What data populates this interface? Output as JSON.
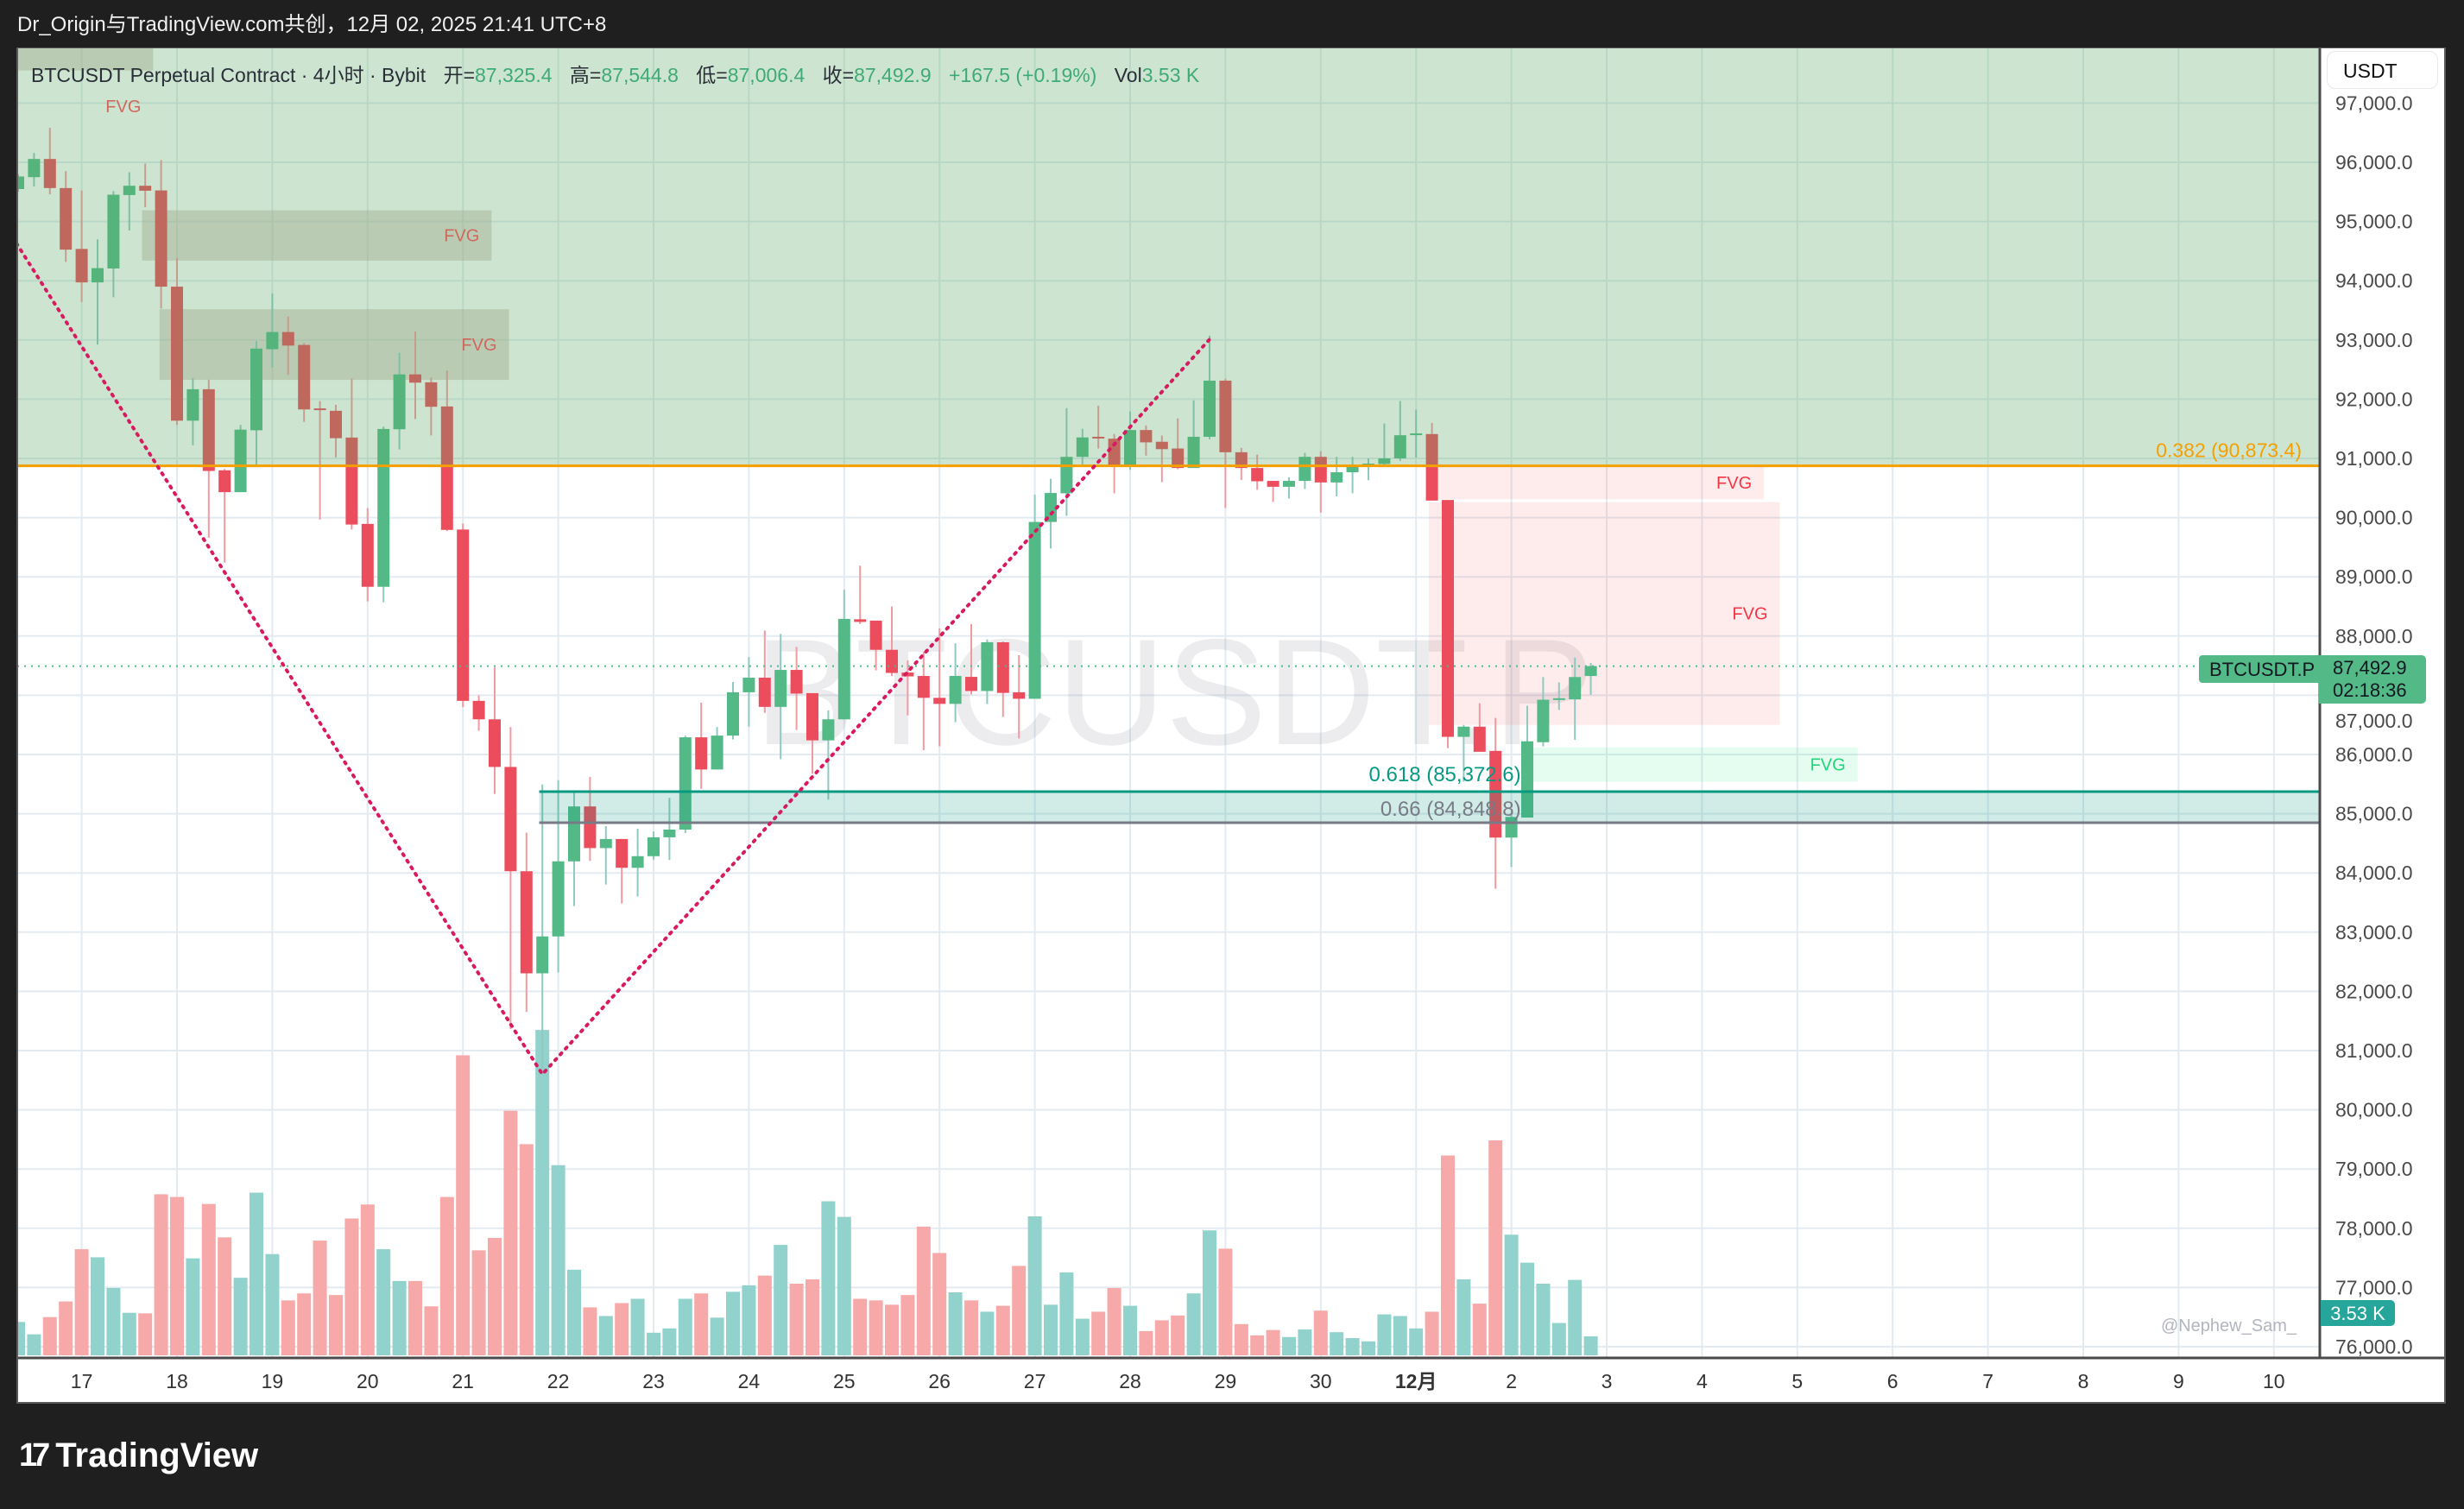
{
  "header": {
    "share_text": "Dr_Origin与TradingView.com共创，12月 02, 2025 21:41 UTC+8"
  },
  "legend": {
    "symbol_desc": "BTCUSDT Perpetual Contract · 4小时 · Bybit",
    "open_label": "开=",
    "open": "87,325.4",
    "high_label": "高=",
    "high": "87,544.8",
    "low_label": "低=",
    "low": "87,006.4",
    "close_label": "收=",
    "close": "87,492.9",
    "change": "+167.5 (+0.19%)",
    "vol_label": "Vol",
    "vol": "3.53 K"
  },
  "price_axis": {
    "currency": "USDT",
    "symbol_tag": "BTCUSDT.P",
    "last_price": "87,492.9",
    "countdown": "02:18:36",
    "volume_tag": "3.53 K"
  },
  "watermark": "BTCUSDT.P",
  "author_tag": "@Nephew_Sam_",
  "logo": {
    "mark": "17",
    "text": "TradingView"
  },
  "colors": {
    "up": "#53b987",
    "down": "#eb4d5c",
    "vol_up": "#92d2cc",
    "vol_down": "#f6a9a8",
    "fib_382": "#f59f00",
    "fib_618": "#089981",
    "fib_66": "#787b86",
    "zigzag": "#d81b60"
  },
  "chart_data": {
    "type": "candlestick",
    "title": "BTCUSDT Perpetual Contract · 4小时 · Bybit",
    "ylabel": "USDT",
    "ylim": [
      76000,
      97000
    ],
    "grid": true,
    "yticks": [
      {
        "value": 97000,
        "label": "97,000.0"
      },
      {
        "value": 96000,
        "label": "96,000.0"
      },
      {
        "value": 95000,
        "label": "95,000.0"
      },
      {
        "value": 94000,
        "label": "94,000.0"
      },
      {
        "value": 93000,
        "label": "93,000.0"
      },
      {
        "value": 92000,
        "label": "92,000.0"
      },
      {
        "value": 91000,
        "label": "91,000.0"
      },
      {
        "value": 90000,
        "label": "90,000.0"
      },
      {
        "value": 89000,
        "label": "89,000.0"
      },
      {
        "value": 88000,
        "label": "88,000.0"
      },
      {
        "value": 87000,
        "label": "87,000.0"
      },
      {
        "value": 86000,
        "label": "86,000.0"
      },
      {
        "value": 85000,
        "label": "85,000.0"
      },
      {
        "value": 84000,
        "label": "84,000.0"
      },
      {
        "value": 83000,
        "label": "83,000.0"
      },
      {
        "value": 82000,
        "label": "82,000.0"
      },
      {
        "value": 81000,
        "label": "81,000.0"
      },
      {
        "value": 80000,
        "label": "80,000.0"
      },
      {
        "value": 79000,
        "label": "79,000.0"
      },
      {
        "value": 78000,
        "label": "78,000.0"
      },
      {
        "value": 77000,
        "label": "77,000.0"
      },
      {
        "value": 76000,
        "label": "76,000.0"
      }
    ],
    "xticks": [
      {
        "bar": 4,
        "label": "17"
      },
      {
        "bar": 10,
        "label": "18"
      },
      {
        "bar": 16,
        "label": "19"
      },
      {
        "bar": 22,
        "label": "20"
      },
      {
        "bar": 28,
        "label": "21"
      },
      {
        "bar": 34,
        "label": "22"
      },
      {
        "bar": 40,
        "label": "23"
      },
      {
        "bar": 46,
        "label": "24"
      },
      {
        "bar": 52,
        "label": "25"
      },
      {
        "bar": 58,
        "label": "26"
      },
      {
        "bar": 64,
        "label": "27"
      },
      {
        "bar": 70,
        "label": "28"
      },
      {
        "bar": 76,
        "label": "29"
      },
      {
        "bar": 82,
        "label": "30"
      },
      {
        "bar": 88,
        "label": "12月",
        "bold": true
      },
      {
        "bar": 94,
        "label": "2"
      },
      {
        "bar": 100,
        "label": "3"
      },
      {
        "bar": 106,
        "label": "4"
      },
      {
        "bar": 112,
        "label": "5"
      },
      {
        "bar": 118,
        "label": "6"
      },
      {
        "bar": 124,
        "label": "7"
      },
      {
        "bar": 130,
        "label": "8"
      },
      {
        "bar": 136,
        "label": "9"
      },
      {
        "bar": 142,
        "label": "10"
      }
    ],
    "candle_fields": [
      "open",
      "high",
      "low",
      "close",
      "volume_k"
    ],
    "candles": [
      [
        95548,
        95800,
        95500,
        95760,
        6.2
      ],
      [
        95749,
        96157,
        95592,
        96056,
        3.9
      ],
      [
        96056,
        96581,
        95458,
        95565,
        7.1
      ],
      [
        95565,
        95850,
        94319,
        94525,
        10.0
      ],
      [
        94537,
        95525,
        93643,
        93972,
        19.7
      ],
      [
        93972,
        94699,
        92922,
        94213,
        18.2
      ],
      [
        94207,
        95514,
        93721,
        95453,
        12.5
      ],
      [
        95447,
        95833,
        94849,
        95604,
        7.9
      ],
      [
        95604,
        95978,
        95241,
        95520,
        7.8
      ],
      [
        95525,
        96039,
        93531,
        93900,
        29.9
      ],
      [
        93900,
        94386,
        91564,
        91637,
        29.4
      ],
      [
        91637,
        92358,
        91223,
        92168,
        18.0
      ],
      [
        92168,
        92330,
        89659,
        90788,
        28.1
      ],
      [
        90799,
        90821,
        89240,
        90430,
        21.9
      ],
      [
        90430,
        91564,
        90430,
        91486,
        14.4
      ],
      [
        91475,
        92983,
        90888,
        92855,
        30.2
      ],
      [
        92844,
        93788,
        92536,
        93134,
        18.8
      ],
      [
        93134,
        93397,
        92408,
        92905,
        10.2
      ],
      [
        92916,
        92950,
        91615,
        91827,
        11.5
      ],
      [
        91844,
        91967,
        89966,
        91827,
        21.3
      ],
      [
        91804,
        91905,
        91017,
        91341,
        11.2
      ],
      [
        91352,
        92346,
        89799,
        89883,
        25.4
      ],
      [
        89894,
        90162,
        88586,
        88832,
        28.0
      ],
      [
        88832,
        91536,
        88570,
        91497,
        19.7
      ],
      [
        91492,
        92782,
        91151,
        92419,
        13.8
      ],
      [
        92419,
        93145,
        91665,
        92279,
        13.8
      ],
      [
        92285,
        92369,
        91386,
        91872,
        9.1
      ],
      [
        91877,
        92486,
        89771,
        89793,
        29.4
      ],
      [
        89799,
        89900,
        86800,
        86906,
        55.7
      ],
      [
        86906,
        87000,
        86400,
        86594,
        19.5
      ],
      [
        86594,
        87471,
        85334,
        85790,
        21.8
      ],
      [
        85790,
        86463,
        81363,
        84029,
        45.4
      ],
      [
        84029,
        84681,
        81653,
        82305,
        39.2
      ],
      [
        82305,
        85493,
        80600,
        82928,
        60.4
      ],
      [
        82928,
        85566,
        82319,
        84196,
        35.3
      ],
      [
        84196,
        85392,
        83442,
        85123,
        15.9
      ],
      [
        85123,
        85623,
        84203,
        84420,
        8.9
      ],
      [
        84420,
        84790,
        83805,
        84573,
        7.3
      ],
      [
        84573,
        84573,
        83486,
        84087,
        9.7
      ],
      [
        84087,
        84747,
        83602,
        84283,
        10.5
      ],
      [
        84283,
        84700,
        84225,
        84602,
        4.2
      ],
      [
        84602,
        85268,
        84218,
        84732,
        5.0
      ],
      [
        84732,
        86319,
        84674,
        86290,
        10.5
      ],
      [
        86290,
        86877,
        85420,
        85747,
        11.5
      ],
      [
        85747,
        86464,
        85747,
        86319,
        7.0
      ],
      [
        86319,
        87225,
        86254,
        87051,
        11.8
      ],
      [
        87051,
        87645,
        86471,
        87297,
        13.0
      ],
      [
        87297,
        88094,
        86703,
        86804,
        14.8
      ],
      [
        86804,
        88036,
        85921,
        87428,
        20.5
      ],
      [
        87428,
        87819,
        86413,
        87029,
        13.3
      ],
      [
        87036,
        87036,
        85674,
        86239,
        14.1
      ],
      [
        86239,
        86746,
        85239,
        86594,
        28.6
      ],
      [
        86594,
        88783,
        86594,
        88290,
        25.7
      ],
      [
        88283,
        89188,
        88203,
        88239,
        10.5
      ],
      [
        88261,
        88261,
        87420,
        87768,
        10.2
      ],
      [
        87768,
        88500,
        87326,
        87377,
        9.4
      ],
      [
        87384,
        87587,
        86660,
        87319,
        11.2
      ],
      [
        87326,
        87732,
        86073,
        86957,
        23.9
      ],
      [
        86957,
        88130,
        86138,
        86855,
        19.0
      ],
      [
        86855,
        87877,
        86544,
        87326,
        11.7
      ],
      [
        87311,
        88202,
        87014,
        87072,
        10.2
      ],
      [
        87072,
        87942,
        86853,
        87895,
        8.1
      ],
      [
        87895,
        87910,
        86634,
        87040,
        9.2
      ],
      [
        87051,
        87676,
        86269,
        86941,
        16.6
      ],
      [
        86941,
        90390,
        86941,
        89927,
        25.8
      ],
      [
        89927,
        90656,
        89479,
        90416,
        9.4
      ],
      [
        90411,
        91849,
        90031,
        91026,
        15.4
      ],
      [
        91026,
        91500,
        90854,
        91354,
        6.8
      ],
      [
        91365,
        91891,
        91167,
        91349,
        8.1
      ],
      [
        91333,
        91411,
        90411,
        90880,
        12.5
      ],
      [
        90880,
        91792,
        90807,
        91479,
        9.2
      ],
      [
        91479,
        91557,
        91047,
        91271,
        4.5
      ],
      [
        91281,
        91386,
        90599,
        91156,
        6.5
      ],
      [
        91167,
        91677,
        90817,
        90838,
        7.4
      ],
      [
        90838,
        91980,
        90838,
        91365,
        11.5
      ],
      [
        91365,
        93073,
        91323,
        92313,
        23.2
      ],
      [
        92313,
        92344,
        90161,
        91104,
        19.8
      ],
      [
        91104,
        91177,
        90635,
        90838,
        5.8
      ],
      [
        90838,
        91063,
        90469,
        90614,
        3.7
      ],
      [
        90620,
        90620,
        90265,
        90521,
        4.7
      ],
      [
        90521,
        90682,
        90323,
        90620,
        3.4
      ],
      [
        90620,
        91094,
        90484,
        91026,
        4.8
      ],
      [
        91026,
        91120,
        90083,
        90594,
        8.3
      ],
      [
        90594,
        91026,
        90359,
        90766,
        4.3
      ],
      [
        90766,
        91026,
        90411,
        90859,
        3.2
      ],
      [
        90885,
        91000,
        90630,
        90911,
        2.6
      ],
      [
        90906,
        91589,
        90885,
        91000,
        7.6
      ],
      [
        91000,
        91969,
        90958,
        91391,
        7.3
      ],
      [
        91406,
        91823,
        91010,
        91422,
        5.0
      ],
      [
        91411,
        91599,
        90288,
        90288,
        8.1
      ],
      [
        90298,
        90298,
        86107,
        86298,
        37.1
      ],
      [
        86298,
        86500,
        85541,
        86470,
        14.1
      ],
      [
        86470,
        86864,
        86046,
        86046,
        9.6
      ],
      [
        86061,
        86617,
        83733,
        84597,
        39.9
      ],
      [
        84597,
        85000,
        84100,
        84945,
        22.4
      ],
      [
        84935,
        86824,
        84935,
        86223,
        17.2
      ],
      [
        86208,
        87308,
        86137,
        86925,
        13.3
      ],
      [
        86940,
        87217,
        86753,
        86950,
        6.0
      ],
      [
        86930,
        87637,
        86248,
        87308,
        14.0
      ],
      [
        87325.4,
        87544.8,
        87006.4,
        87492.9,
        3.53
      ]
    ],
    "last_price": 87492.9,
    "premium_zone": {
      "from_price": 90873.4,
      "to_price": 97000
    },
    "fib_levels": [
      {
        "ratio": "0.382",
        "price": 90873.4,
        "label": "0.382 (90,873.4)"
      },
      {
        "ratio": "0.618",
        "price": 85372.6,
        "label": "0.618 (85,372.6)"
      },
      {
        "ratio": "0.66",
        "price": 84848.8,
        "label": "0.66 (84,848.8)"
      }
    ],
    "fib_band_start_bar": 32.8,
    "fvg_zones": [
      {
        "label": "FVG",
        "kind": "neutral",
        "from_bar": -1,
        "to_bar": 8.5,
        "low": 97550,
        "high": 98300
      },
      {
        "label": "FVG",
        "kind": "neutral",
        "from_bar": 7.8,
        "to_bar": 29.8,
        "low": 94340,
        "high": 95190
      },
      {
        "label": "FVG",
        "kind": "neutral",
        "from_bar": 8.9,
        "to_bar": 30.9,
        "low": 92325,
        "high": 93520
      },
      {
        "label": "FVG",
        "kind": "bearish",
        "from_bar": 88.8,
        "to_bar": 109.9,
        "low": 90310,
        "high": 90870
      },
      {
        "label": "FVG",
        "kind": "bearish",
        "from_bar": 88.8,
        "to_bar": 110.9,
        "low": 86500,
        "high": 90260
      },
      {
        "label": "FVG",
        "kind": "bullish",
        "from_bar": 95.2,
        "to_bar": 115.8,
        "low": 85540,
        "high": 86120
      }
    ],
    "zigzag": [
      [
        -0.1,
        94630
      ],
      [
        33,
        80600
      ],
      [
        75,
        93010
      ]
    ]
  }
}
